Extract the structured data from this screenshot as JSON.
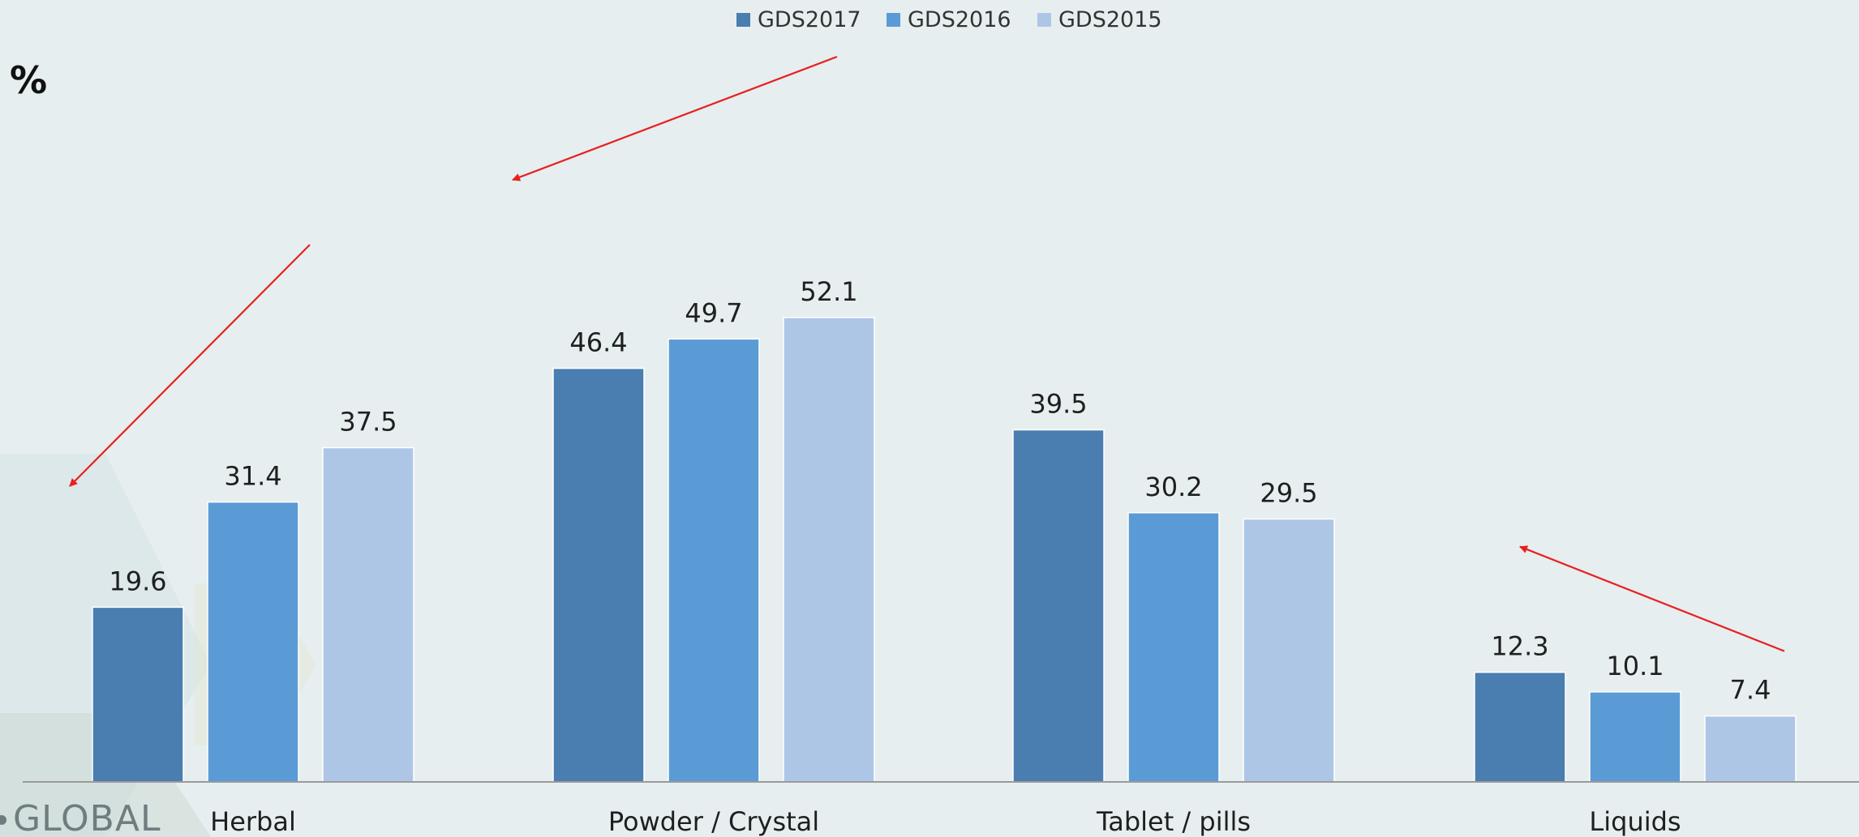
{
  "chart_data": {
    "type": "bar",
    "unit_label": "%",
    "categories": [
      "Herbal",
      "Powder / Crystal",
      "Tablet / pills",
      "Liquids"
    ],
    "series": [
      {
        "name": "GDS2017",
        "color": "#4a7db0",
        "values": [
          19.6,
          46.4,
          39.5,
          12.3
        ]
      },
      {
        "name": "GDS2016",
        "color": "#5b9bd5",
        "values": [
          31.4,
          49.7,
          30.2,
          10.1
        ]
      },
      {
        "name": "GDS2015",
        "color": "#aec6e6",
        "values": [
          37.5,
          52.1,
          29.5,
          7.4
        ]
      }
    ],
    "value_labels": [
      [
        "19.6",
        "46.4",
        "39.5",
        "12.3"
      ],
      [
        "31.4",
        "49.7",
        "30.2",
        "10.1"
      ],
      [
        "37.5",
        "52.1",
        "29.5",
        "7.4"
      ]
    ],
    "ylim": [
      0,
      60
    ],
    "grid": false,
    "legend_position": "top-center",
    "annotation_color": "#e8201e",
    "trend_arrows": [
      {
        "category": "Herbal",
        "direction": "decrease"
      },
      {
        "category": "Powder / Crystal",
        "direction": "decrease"
      },
      {
        "category": "Liquids",
        "direction": "increase"
      }
    ]
  },
  "logo": {
    "text": "GLOBAL"
  }
}
